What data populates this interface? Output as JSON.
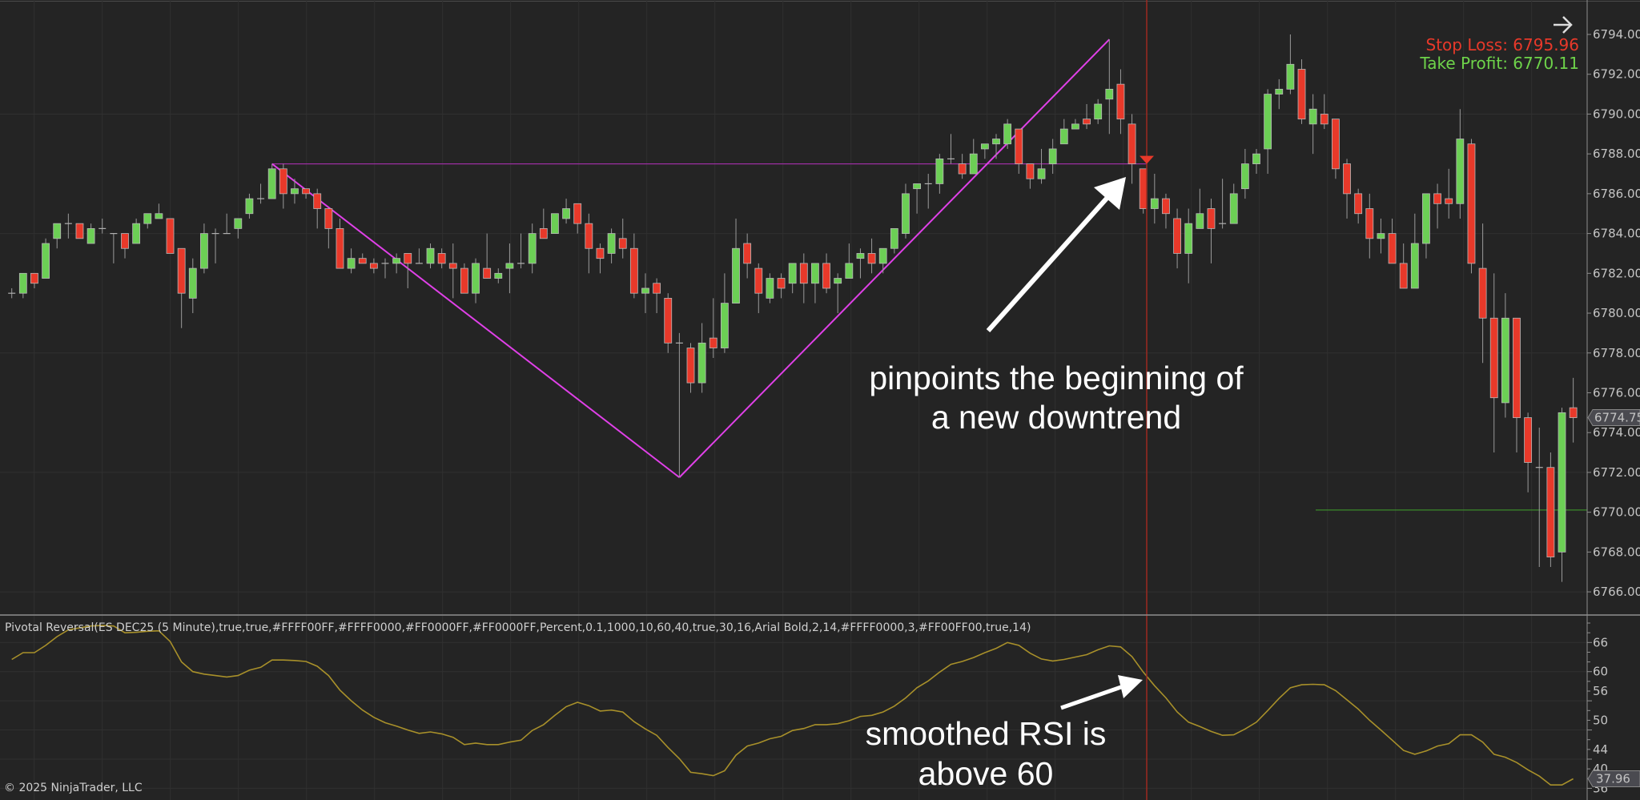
{
  "colors": {
    "background": "#242424",
    "grid": "#303030",
    "up_candle": "#6ccf55",
    "down_candle": "#e8392a",
    "wick": "#9a9a9a",
    "pivot_line": "#e040e8",
    "pivot_level_line": "#9a2fa0",
    "signal_line": "#9b2a20",
    "rsi_line": "#a8902a",
    "take_profit_line": "#3a8a2a",
    "stop_loss_text": "#e8392a",
    "take_profit_text": "#6ed34a",
    "price_tag": "#4a4a50"
  },
  "indicator_label": "Pivotal Reversal(ES DEC25 (5 Minute),true,true,#FFFF00FF,#FFFF0000,#FF0000FF,#FF0000FF,Percent,0.1,1000,10,60,40,true,30,16,Arial Bold,2,14,#FFFF0000,3,#FF00FF00,true,14)",
  "copyright": "© 2025 NinjaTrader, LLC",
  "trade_info": {
    "icon": "arrow-right-icon",
    "stop_loss": "Stop Loss: 6795.96",
    "take_profit": "Take Profit: 6770.11",
    "take_profit_value": 6770.11
  },
  "annotations": {
    "top_line1": "pinpoints the beginning of",
    "top_line2": "a new downtrend",
    "bottom_line1": "smoothed RSI is",
    "bottom_line2": "above 60"
  },
  "price_axis": {
    "ticks": [
      "6766.00",
      "6768.00",
      "6770.00",
      "6772.00",
      "6774.00",
      "6776.00",
      "6778.00",
      "6780.00",
      "6782.00",
      "6784.00",
      "6786.00",
      "6788.00",
      "6790.00",
      "6792.00",
      "6794.00"
    ],
    "last_price": "6774.75"
  },
  "rsi_axis": {
    "ticks": [
      "66",
      "60",
      "56",
      "50",
      "44",
      "40",
      "36"
    ],
    "last_value": "37.96"
  },
  "chart_data": [
    {
      "type": "candlestick",
      "instrument": "ES DEC25 (5 Minute)",
      "ylim": [
        6765,
        6795
      ],
      "ohlc": [
        [
          6781,
          6781.25,
          6780.75,
          6781
        ],
        [
          6781,
          6782,
          6780.75,
          6782
        ],
        [
          6782,
          6782,
          6781.25,
          6781.5
        ],
        [
          6781.75,
          6783.75,
          6781.75,
          6783.5
        ],
        [
          6783.75,
          6784.5,
          6783.25,
          6784.5
        ],
        [
          6784.5,
          6785,
          6783.75,
          6784.5
        ],
        [
          6784.5,
          6784.5,
          6783.75,
          6783.75
        ],
        [
          6783.5,
          6784.5,
          6783.5,
          6784.25
        ],
        [
          6784.25,
          6784.75,
          6784,
          6784.25
        ],
        [
          6784,
          6784,
          6782.5,
          6784
        ],
        [
          6784,
          6784,
          6782.75,
          6783.25
        ],
        [
          6783.5,
          6784.75,
          6783.5,
          6784.5
        ],
        [
          6784.5,
          6785,
          6784.25,
          6785
        ],
        [
          6784.75,
          6785.5,
          6784.75,
          6785
        ],
        [
          6784.75,
          6784.75,
          6783,
          6783
        ],
        [
          6783.25,
          6783.25,
          6779.25,
          6781
        ],
        [
          6780.75,
          6782.75,
          6780,
          6782.25
        ],
        [
          6782.25,
          6784.5,
          6782,
          6784
        ],
        [
          6784,
          6784.25,
          6782.5,
          6784
        ],
        [
          6784,
          6785,
          6784,
          6784
        ],
        [
          6784.25,
          6784.75,
          6783.75,
          6784.75
        ],
        [
          6785,
          6786,
          6784.75,
          6785.75
        ],
        [
          6785.75,
          6786.5,
          6785.5,
          6785.75
        ],
        [
          6785.75,
          6787.5,
          6785.75,
          6787.25
        ],
        [
          6787.25,
          6787.5,
          6785.25,
          6786
        ],
        [
          6786,
          6786.75,
          6785.5,
          6786.25
        ],
        [
          6786.25,
          6786.25,
          6785.75,
          6786
        ],
        [
          6786,
          6786.25,
          6784.25,
          6785.25
        ],
        [
          6785.25,
          6785.25,
          6783.25,
          6784.25
        ],
        [
          6784.25,
          6784.75,
          6782.25,
          6782.25
        ],
        [
          6782.25,
          6783.25,
          6782,
          6782.75
        ],
        [
          6782.75,
          6783,
          6782.5,
          6782.5
        ],
        [
          6782.5,
          6782.75,
          6782,
          6782.25
        ],
        [
          6782.5,
          6782.75,
          6781.75,
          6782.5
        ],
        [
          6782.5,
          6783,
          6782,
          6782.75
        ],
        [
          6783,
          6783,
          6781.25,
          6782.5
        ],
        [
          6782.5,
          6783.25,
          6782.5,
          6782.5
        ],
        [
          6782.5,
          6783.5,
          6782.25,
          6783.25
        ],
        [
          6783,
          6783.25,
          6782.25,
          6782.5
        ],
        [
          6782.5,
          6783.5,
          6780.75,
          6782.25
        ],
        [
          6782.25,
          6782.5,
          6781,
          6781
        ],
        [
          6781,
          6782.75,
          6780.5,
          6782.5
        ],
        [
          6782.25,
          6784,
          6781.75,
          6781.75
        ],
        [
          6781.75,
          6782.25,
          6781.5,
          6782
        ],
        [
          6782.25,
          6783.5,
          6781,
          6782.5
        ],
        [
          6782.5,
          6784,
          6782.25,
          6782.5
        ],
        [
          6782.5,
          6784.5,
          6782,
          6784
        ],
        [
          6784.25,
          6785.25,
          6783.75,
          6783.75
        ],
        [
          6784,
          6785,
          6784,
          6785
        ],
        [
          6784.75,
          6785.75,
          6784.5,
          6785.25
        ],
        [
          6785.5,
          6785.5,
          6784,
          6784.5
        ],
        [
          6784.5,
          6785,
          6782,
          6783.25
        ],
        [
          6783.25,
          6783.5,
          6782,
          6782.75
        ],
        [
          6783,
          6784.25,
          6782.5,
          6784
        ],
        [
          6783.75,
          6784.75,
          6782.75,
          6783.25
        ],
        [
          6783.25,
          6784,
          6780.75,
          6781
        ],
        [
          6781,
          6782,
          6780,
          6781.25
        ],
        [
          6781.5,
          6781.75,
          6780,
          6781
        ],
        [
          6780.75,
          6781,
          6778,
          6778.5
        ],
        [
          6778.5,
          6779,
          6771.75,
          6778.5
        ],
        [
          6778.25,
          6778.5,
          6776,
          6776.5
        ],
        [
          6776.5,
          6779.5,
          6776,
          6778.5
        ],
        [
          6778.75,
          6780.75,
          6777.75,
          6778.25
        ],
        [
          6778.25,
          6782,
          6778,
          6780.5
        ],
        [
          6780.5,
          6784.75,
          6780.5,
          6783.25
        ],
        [
          6783.5,
          6784,
          6781.75,
          6782.5
        ],
        [
          6782.25,
          6782.5,
          6780,
          6781
        ],
        [
          6780.75,
          6782,
          6780.5,
          6781.75
        ],
        [
          6781.75,
          6782,
          6780.75,
          6781.25
        ],
        [
          6781.5,
          6782.5,
          6781,
          6782.5
        ],
        [
          6782.5,
          6783,
          6780.5,
          6781.5
        ],
        [
          6781.5,
          6782.5,
          6780.5,
          6782.5
        ],
        [
          6782.5,
          6783,
          6781,
          6781.25
        ],
        [
          6781.5,
          6782,
          6780,
          6781.75
        ],
        [
          6781.75,
          6783.5,
          6781.75,
          6782.5
        ],
        [
          6782.75,
          6783.25,
          6781.75,
          6783
        ],
        [
          6783,
          6783.75,
          6782,
          6782.5
        ],
        [
          6782.5,
          6783.25,
          6782,
          6783.25
        ],
        [
          6783.25,
          6784.25,
          6783,
          6784.25
        ],
        [
          6784,
          6786.5,
          6783.75,
          6786
        ],
        [
          6786.25,
          6786.5,
          6785,
          6786.5
        ],
        [
          6786.5,
          6787,
          6785.25,
          6786.5
        ],
        [
          6786.5,
          6788,
          6786,
          6787.75
        ],
        [
          6787.75,
          6789,
          6787.5,
          6787.75
        ],
        [
          6787.5,
          6788,
          6786.75,
          6787
        ],
        [
          6787,
          6788.75,
          6787,
          6788
        ],
        [
          6788.25,
          6788.5,
          6787.75,
          6788.5
        ],
        [
          6788.5,
          6789,
          6787.75,
          6788.75
        ],
        [
          6788.5,
          6789.75,
          6788.25,
          6789.5
        ],
        [
          6789.25,
          6789.25,
          6787,
          6787.5
        ],
        [
          6787.5,
          6787.5,
          6786.25,
          6786.75
        ],
        [
          6786.75,
          6788.25,
          6786.5,
          6787.25
        ],
        [
          6787.5,
          6788.75,
          6787,
          6788.25
        ],
        [
          6788.5,
          6789.75,
          6788.5,
          6789.25
        ],
        [
          6789.25,
          6789.75,
          6789.25,
          6789.5
        ],
        [
          6789.75,
          6790.5,
          6789.25,
          6789.5
        ],
        [
          6789.75,
          6790.75,
          6789.5,
          6790.5
        ],
        [
          6790.75,
          6793.75,
          6789,
          6791.25
        ],
        [
          6791.5,
          6792.25,
          6789,
          6789.75
        ],
        [
          6789.5,
          6790,
          6786.5,
          6787.5
        ],
        [
          6787.25,
          6787.25,
          6785,
          6785.25
        ],
        [
          6785.25,
          6787,
          6784.5,
          6785.75
        ],
        [
          6785.75,
          6786,
          6784.25,
          6785
        ],
        [
          6784.75,
          6785.25,
          6782.25,
          6783
        ],
        [
          6783,
          6785.25,
          6781.5,
          6784.5
        ],
        [
          6784.25,
          6786.25,
          6784.25,
          6785
        ],
        [
          6785.25,
          6785.75,
          6782.5,
          6784.25
        ],
        [
          6784.5,
          6786.75,
          6784.25,
          6784.5
        ],
        [
          6784.5,
          6786.5,
          6784.5,
          6786
        ],
        [
          6786.25,
          6788.25,
          6785.75,
          6787.5
        ],
        [
          6787.5,
          6788.25,
          6787,
          6788
        ],
        [
          6788.25,
          6791.25,
          6787,
          6791
        ],
        [
          6791,
          6791.75,
          6790.25,
          6791.25
        ],
        [
          6791.25,
          6794,
          6791,
          6792.5
        ],
        [
          6792.25,
          6792.75,
          6789.5,
          6789.75
        ],
        [
          6789.5,
          6791,
          6788,
          6790.25
        ],
        [
          6790,
          6791,
          6789.25,
          6789.5
        ],
        [
          6789.75,
          6789.75,
          6786.75,
          6787.25
        ],
        [
          6787.5,
          6787.75,
          6784.75,
          6786
        ],
        [
          6786,
          6786.25,
          6784.5,
          6785
        ],
        [
          6785.25,
          6786,
          6782.75,
          6783.75
        ],
        [
          6783.75,
          6784.75,
          6783,
          6784
        ],
        [
          6784,
          6784.75,
          6782.5,
          6782.5
        ],
        [
          6782.5,
          6783.5,
          6781.25,
          6781.25
        ],
        [
          6781.25,
          6785,
          6781.25,
          6783.5
        ],
        [
          6783.5,
          6786,
          6782.75,
          6786
        ],
        [
          6786,
          6786.5,
          6784.25,
          6785.5
        ],
        [
          6785.75,
          6787.25,
          6784.75,
          6785.5
        ],
        [
          6785.5,
          6790.25,
          6784.75,
          6788.75
        ],
        [
          6788.5,
          6788.75,
          6782,
          6782.5
        ],
        [
          6782.25,
          6784.5,
          6777.5,
          6779.75
        ],
        [
          6779.75,
          6782,
          6773,
          6775.75
        ],
        [
          6775.5,
          6781,
          6774.75,
          6779.75
        ],
        [
          6779.75,
          6779.75,
          6773,
          6774.75
        ],
        [
          6774.75,
          6775,
          6771,
          6772.5
        ],
        [
          6772.25,
          6774.25,
          6767.25,
          6772.25
        ],
        [
          6772.25,
          6773,
          6767.25,
          6767.75
        ],
        [
          6768,
          6775.25,
          6766.5,
          6775
        ],
        [
          6775.25,
          6776.75,
          6773.5,
          6774.75
        ]
      ],
      "pivots": [
        {
          "bar": 24,
          "price": 6787.5,
          "kind": "high"
        },
        {
          "bar": 60,
          "price": 6771.75,
          "kind": "low"
        },
        {
          "bar": 98,
          "price": 6793.75,
          "kind": "high"
        }
      ],
      "pivot_level": {
        "price": 6787.5,
        "from_bar": 24,
        "to_bar": 101
      },
      "sell_signal_bar": 101
    },
    {
      "type": "line",
      "name": "smoothed RSI",
      "ylim": [
        35,
        71
      ],
      "values": [
        62.5,
        63.9,
        63.9,
        65.4,
        67.2,
        68.6,
        69,
        69.4,
        69.5,
        69.4,
        68,
        68.1,
        68.3,
        68.4,
        66.2,
        62,
        60,
        59.5,
        59.2,
        58.9,
        59.2,
        60.3,
        60.9,
        62.4,
        62.4,
        62.3,
        62.1,
        61.1,
        59.2,
        56.2,
        54,
        52.1,
        50.6,
        49.5,
        48.8,
        48,
        47.3,
        47.6,
        47.2,
        46.5,
        45,
        45.3,
        45,
        45,
        45.5,
        45.9,
        47.9,
        49.1,
        51,
        52.8,
        53.7,
        53,
        51.9,
        52.1,
        51.7,
        49.7,
        48.2,
        46.9,
        44.4,
        42.1,
        39.3,
        39,
        38.6,
        39.6,
        42.8,
        44.7,
        45.3,
        46.2,
        46.7,
        47.9,
        48.3,
        49.1,
        49.1,
        49.3,
        49.9,
        50.8,
        51,
        51.7,
        52.9,
        54.6,
        56.7,
        58.1,
        59.9,
        61.5,
        62.1,
        62.9,
        63.9,
        64.8,
        66,
        65.4,
        63.8,
        62.6,
        62.2,
        62.5,
        63,
        63.5,
        64.5,
        65.3,
        65.1,
        63.1,
        59.9,
        57.1,
        54.6,
        51.7,
        49.6,
        48.7,
        47.7,
        46.9,
        47,
        48.2,
        49.6,
        52,
        54.5,
        56.7,
        57.3,
        57.4,
        57.3,
        56.1,
        54.2,
        52.3,
        50,
        48,
        45.9,
        43.8,
        43,
        43.7,
        44.7,
        45.2,
        47,
        47,
        45.5,
        43,
        42.4,
        41.3,
        39.8,
        38.5,
        36.7,
        36.7,
        37.96
      ]
    }
  ]
}
